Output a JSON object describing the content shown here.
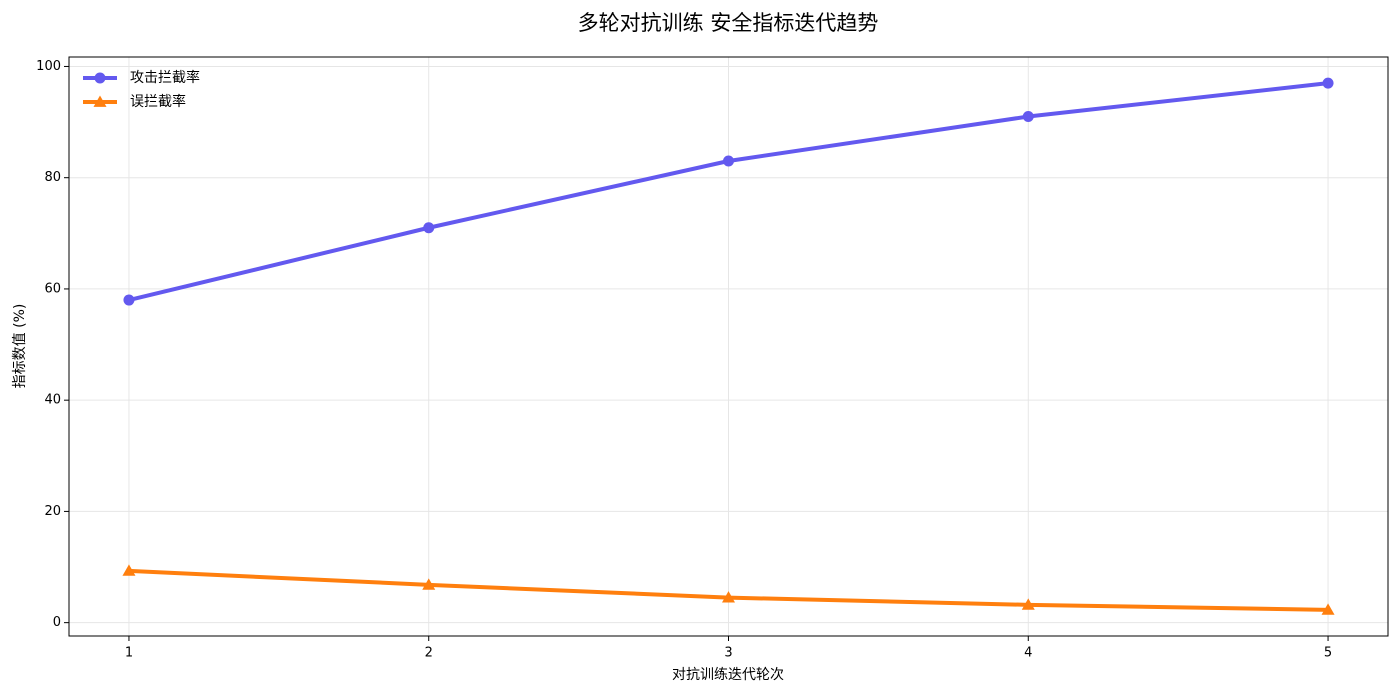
{
  "chart_data": {
    "type": "line",
    "title": "多轮对抗训练 安全指标迭代趋势",
    "x_label": "对抗训练迭代轮次",
    "y_label": "指标数值 (%)",
    "x": [
      1,
      2,
      3,
      4,
      5
    ],
    "series": [
      {
        "name": "攻击拦截率",
        "color": "#6359ef",
        "marker": "circle",
        "values": [
          58,
          71,
          83,
          91,
          97
        ]
      },
      {
        "name": "误拦截率",
        "color": "#ff7f0e",
        "marker": "triangle",
        "values": [
          9.3,
          6.8,
          4.5,
          3.2,
          2.3
        ]
      }
    ],
    "xlim": [
      0.8,
      5.2
    ],
    "xticks": [
      1,
      2,
      3,
      4,
      5
    ],
    "ylim": [
      -2.4,
      101.7
    ],
    "yticks": [
      0,
      20,
      40,
      60,
      80,
      100
    ],
    "grid": true,
    "legend": "upper-left"
  }
}
